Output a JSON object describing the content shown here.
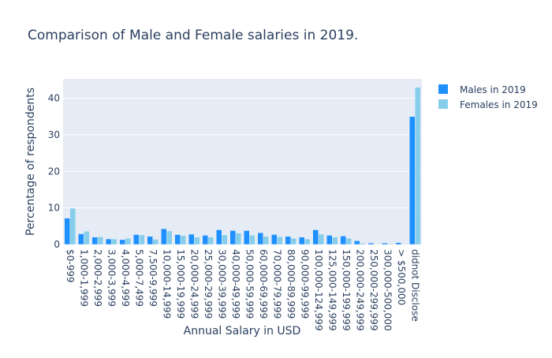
{
  "chart_data": {
    "type": "bar",
    "title": "Comparison of Male and Female salaries in 2019.",
    "xlabel": "Annual Salary in USD",
    "ylabel": "Percentage of respondents",
    "ylim": [
      0,
      45.3
    ],
    "yticks": [
      0,
      10,
      20,
      30,
      40
    ],
    "grid": true,
    "legend_position": "top-right",
    "categories": [
      "$0-999",
      "1,000-1,999",
      "2,000-2,999",
      "3,000-3,999",
      "4,000-4,999",
      "5,000-7,499",
      "7,500-9,999",
      "10,000-14,999",
      "15,000-19,999",
      "20,000-24,999",
      "25,000-29,999",
      "30,000-39,999",
      "40,000-49,999",
      "50,000-59,999",
      "60,000-69,999",
      "70,000-79,999",
      "80,000-89,999",
      "90,000-99,999",
      "100,000-124,999",
      "125,000-149,999",
      "150,000-199,999",
      "200,000-249,999",
      "250,000-299,999",
      "300,000-500,000",
      "> $500,000",
      "didnot Disclose"
    ],
    "series": [
      {
        "name": "Males in 2019",
        "color": "#1e90ff",
        "values": [
          7.2,
          2.9,
          2.0,
          1.5,
          1.3,
          2.7,
          2.2,
          4.3,
          2.7,
          2.8,
          2.5,
          4.0,
          3.8,
          3.8,
          3.2,
          2.7,
          2.2,
          2.0,
          4.0,
          2.5,
          2.3,
          1.0,
          0.4,
          0.4,
          0.5,
          35.0
        ]
      },
      {
        "name": "Females in 2019",
        "color": "#87ceeb",
        "values": [
          9.9,
          3.6,
          2.1,
          1.5,
          1.7,
          2.6,
          1.4,
          3.7,
          2.4,
          2.0,
          2.0,
          2.6,
          3.1,
          2.5,
          2.2,
          2.1,
          1.7,
          1.5,
          2.8,
          2.0,
          1.7,
          0.3,
          0.1,
          0.2,
          0.1,
          43.0
        ]
      }
    ]
  }
}
